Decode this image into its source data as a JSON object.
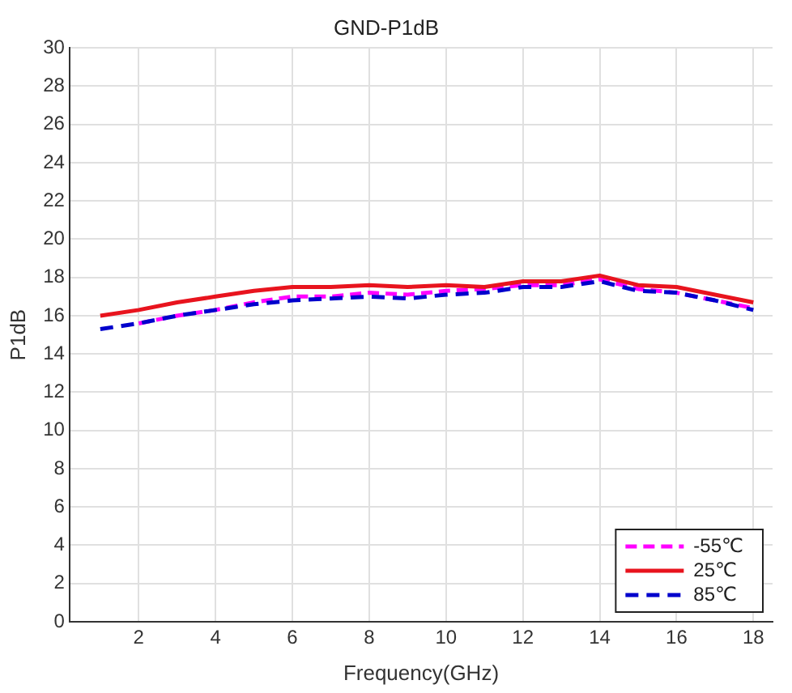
{
  "chart_data": {
    "type": "line",
    "title": "GND-P1dB",
    "xlabel": "Frequency(GHz)",
    "ylabel": "P1dB",
    "x": [
      1,
      2,
      3,
      4,
      5,
      6,
      7,
      8,
      9,
      10,
      11,
      12,
      13,
      14,
      15,
      16,
      17,
      18
    ],
    "series": [
      {
        "name": "-55℃",
        "color": "#ff00ff",
        "line_style": "dashed",
        "values": [
          null,
          15.6,
          16.0,
          16.3,
          16.7,
          17.0,
          17.0,
          17.2,
          17.1,
          17.3,
          17.4,
          17.6,
          17.6,
          17.9,
          17.4,
          17.2,
          16.8,
          16.4
        ]
      },
      {
        "name": "25℃",
        "color": "#e8141e",
        "line_style": "solid",
        "values": [
          16.0,
          16.3,
          16.7,
          17.0,
          17.3,
          17.5,
          17.5,
          17.6,
          17.5,
          17.6,
          17.5,
          17.8,
          17.8,
          18.1,
          17.6,
          17.5,
          17.1,
          16.7
        ]
      },
      {
        "name": "85℃",
        "color": "#0000cc",
        "line_style": "dashed",
        "values": [
          15.3,
          15.6,
          16.0,
          16.3,
          16.6,
          16.8,
          16.9,
          17.0,
          16.9,
          17.1,
          17.2,
          17.5,
          17.5,
          17.8,
          17.3,
          17.2,
          16.8,
          16.3
        ]
      }
    ],
    "xlim": [
      0.2,
      18.5
    ],
    "xticks": [
      2,
      4,
      6,
      8,
      10,
      12,
      14,
      16,
      18
    ],
    "ylim": [
      0,
      30
    ],
    "yticks": [
      0,
      2,
      4,
      6,
      8,
      10,
      12,
      14,
      16,
      18,
      20,
      22,
      24,
      26,
      28,
      30
    ],
    "grid": true,
    "legend": "bottom right",
    "marker": "none"
  }
}
